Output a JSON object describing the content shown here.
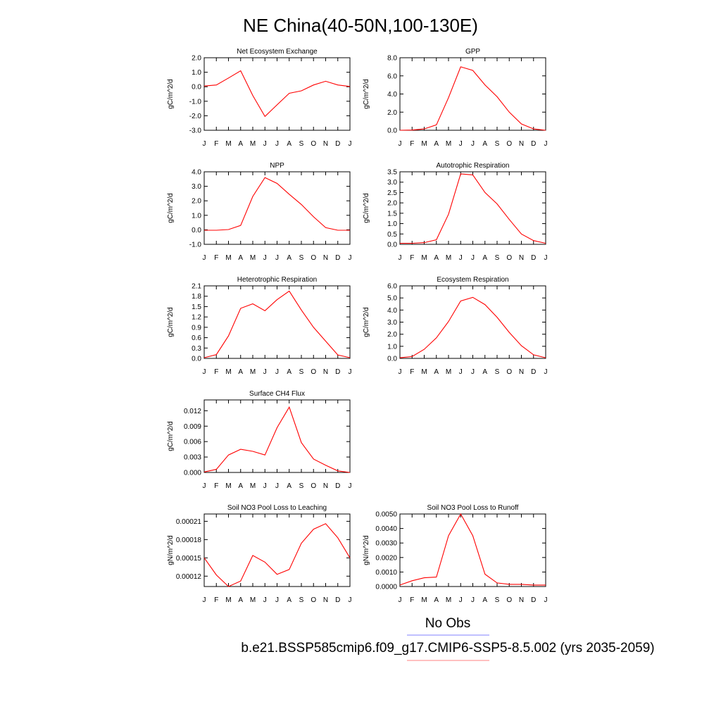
{
  "figure": {
    "title": "NE China(40-50N,100-130E)",
    "legend": {
      "obs_label": "No Obs",
      "obs_color": "#8080ff",
      "case_label": "b.e21.BSSP585cmip6.f09_g17.CMIP6-SSP5-8.5.002 (yrs 2035-2059)",
      "case_color": "#ff8080"
    },
    "line_color": "#ff0000"
  },
  "chart_data": [
    {
      "type": "line",
      "title": "Net Ecosystem Exchange",
      "ylabel": "gC/m^2/d",
      "x": [
        "J",
        "F",
        "M",
        "A",
        "M",
        "J",
        "J",
        "A",
        "S",
        "O",
        "N",
        "D",
        "J"
      ],
      "ylim": [
        -3.0,
        2.0
      ],
      "yticks": [
        "2.0",
        "1.0",
        "0.0",
        "-1.0",
        "-2.0",
        "-3.0"
      ],
      "series": [
        {
          "values": [
            0.05,
            0.12,
            0.6,
            1.1,
            -0.6,
            -2.05,
            -1.25,
            -0.45,
            -0.28,
            0.12,
            0.38,
            0.12,
            0.02
          ]
        }
      ]
    },
    {
      "type": "line",
      "title": "GPP",
      "ylabel": "gC/m^2/d",
      "x": [
        "J",
        "F",
        "M",
        "A",
        "M",
        "J",
        "J",
        "A",
        "S",
        "O",
        "N",
        "D",
        "J"
      ],
      "ylim": [
        0.0,
        8.0
      ],
      "yticks": [
        "8.0",
        "6.0",
        "4.0",
        "2.0",
        "0.0"
      ],
      "series": [
        {
          "values": [
            0.0,
            0.02,
            0.15,
            0.6,
            3.6,
            7.0,
            6.6,
            5.0,
            3.7,
            2.0,
            0.7,
            0.15,
            0.0
          ]
        }
      ]
    },
    {
      "type": "line",
      "title": "NPP",
      "ylabel": "gC/m^2/d",
      "x": [
        "J",
        "F",
        "M",
        "A",
        "M",
        "J",
        "J",
        "A",
        "S",
        "O",
        "N",
        "D",
        "J"
      ],
      "ylim": [
        -1.0,
        4.0
      ],
      "yticks": [
        "4.0",
        "3.0",
        "2.0",
        "1.0",
        "0.0",
        "-1.0"
      ],
      "series": [
        {
          "values": [
            -0.03,
            -0.03,
            0.02,
            0.3,
            2.3,
            3.6,
            3.2,
            2.45,
            1.75,
            0.9,
            0.15,
            -0.03,
            -0.03
          ]
        }
      ]
    },
    {
      "type": "line",
      "title": "Autotrophic Respiration",
      "ylabel": "gC/m^2/d",
      "x": [
        "J",
        "F",
        "M",
        "A",
        "M",
        "J",
        "J",
        "A",
        "S",
        "O",
        "N",
        "D",
        "J"
      ],
      "ylim": [
        0.0,
        3.5
      ],
      "yticks": [
        "3.5",
        "3.0",
        "2.5",
        "2.0",
        "1.5",
        "1.0",
        "0.5",
        "0.0"
      ],
      "series": [
        {
          "values": [
            0.05,
            0.05,
            0.08,
            0.22,
            1.45,
            3.4,
            3.35,
            2.5,
            1.95,
            1.2,
            0.5,
            0.18,
            0.05
          ]
        }
      ]
    },
    {
      "type": "line",
      "title": "Heterotrophic Respiration",
      "ylabel": "gC/m^2/d",
      "x": [
        "J",
        "F",
        "M",
        "A",
        "M",
        "J",
        "J",
        "A",
        "S",
        "O",
        "N",
        "D",
        "J"
      ],
      "ylim": [
        0.0,
        2.1
      ],
      "yticks": [
        "2.1",
        "1.8",
        "1.5",
        "1.2",
        "0.9",
        "0.6",
        "0.3",
        "0.0"
      ],
      "series": [
        {
          "values": [
            0.02,
            0.11,
            0.65,
            1.45,
            1.58,
            1.38,
            1.7,
            1.95,
            1.4,
            0.9,
            0.5,
            0.1,
            0.02
          ]
        }
      ]
    },
    {
      "type": "line",
      "title": "Ecosystem Respiration",
      "ylabel": "gC/m^2/d",
      "x": [
        "J",
        "F",
        "M",
        "A",
        "M",
        "J",
        "J",
        "A",
        "S",
        "O",
        "N",
        "D",
        "J"
      ],
      "ylim": [
        0.0,
        6.0
      ],
      "yticks": [
        "6.0",
        "5.0",
        "4.0",
        "3.0",
        "2.0",
        "1.0",
        "0.0"
      ],
      "series": [
        {
          "values": [
            0.05,
            0.15,
            0.75,
            1.7,
            3.05,
            4.75,
            5.05,
            4.45,
            3.4,
            2.15,
            1.05,
            0.3,
            0.05
          ]
        }
      ]
    },
    {
      "type": "line",
      "title": "Surface CH4 Flux",
      "ylabel": "gC/m^2/d",
      "x": [
        "J",
        "F",
        "M",
        "A",
        "M",
        "J",
        "J",
        "A",
        "S",
        "O",
        "N",
        "D",
        "J"
      ],
      "ylim": [
        0.0,
        0.0141
      ],
      "yticks": [
        "0.012",
        "0.009",
        "0.006",
        "0.003",
        "0.000"
      ],
      "ytick_values": [
        0.012,
        0.009,
        0.006,
        0.003,
        0.0
      ],
      "series": [
        {
          "values": [
            0.0001,
            0.0006,
            0.0034,
            0.0045,
            0.0041,
            0.0034,
            0.0087,
            0.0127,
            0.0058,
            0.0026,
            0.0014,
            0.0003,
            0.0
          ]
        }
      ]
    },
    {
      "type": "line",
      "title": "Soil NO3 Pool Loss to Leaching",
      "ylabel": "gN/m^2/d",
      "x": [
        "J",
        "F",
        "M",
        "A",
        "M",
        "J",
        "J",
        "A",
        "S",
        "O",
        "N",
        "D",
        "J"
      ],
      "ylim": [
        0.000103,
        0.000222
      ],
      "yticks": [
        "0.00021",
        "0.00018",
        "0.00015",
        "0.00012"
      ],
      "ytick_values": [
        0.00021,
        0.00018,
        0.00015,
        0.00012
      ],
      "series": [
        {
          "values": [
            0.00015,
            0.000122,
            0.000103,
            0.000112,
            0.000154,
            0.000143,
            0.000123,
            0.000131,
            0.000174,
            0.000197,
            0.000206,
            0.000183,
            0.00015
          ]
        }
      ]
    },
    {
      "type": "line",
      "title": "Soil NO3 Pool Loss to Runoff",
      "ylabel": "gN/m^2/d",
      "x": [
        "J",
        "F",
        "M",
        "A",
        "M",
        "J",
        "J",
        "A",
        "S",
        "O",
        "N",
        "D",
        "J"
      ],
      "ylim": [
        0.0,
        0.005
      ],
      "yticks": [
        "0.0050",
        "0.0040",
        "0.0030",
        "0.0020",
        "0.0010",
        "0.0000"
      ],
      "series": [
        {
          "values": [
            0.0001,
            0.0004,
            0.0006,
            0.00065,
            0.0035,
            0.005,
            0.0035,
            0.00085,
            0.00025,
            0.00015,
            0.00015,
            0.0001,
            0.0001
          ]
        }
      ]
    }
  ]
}
